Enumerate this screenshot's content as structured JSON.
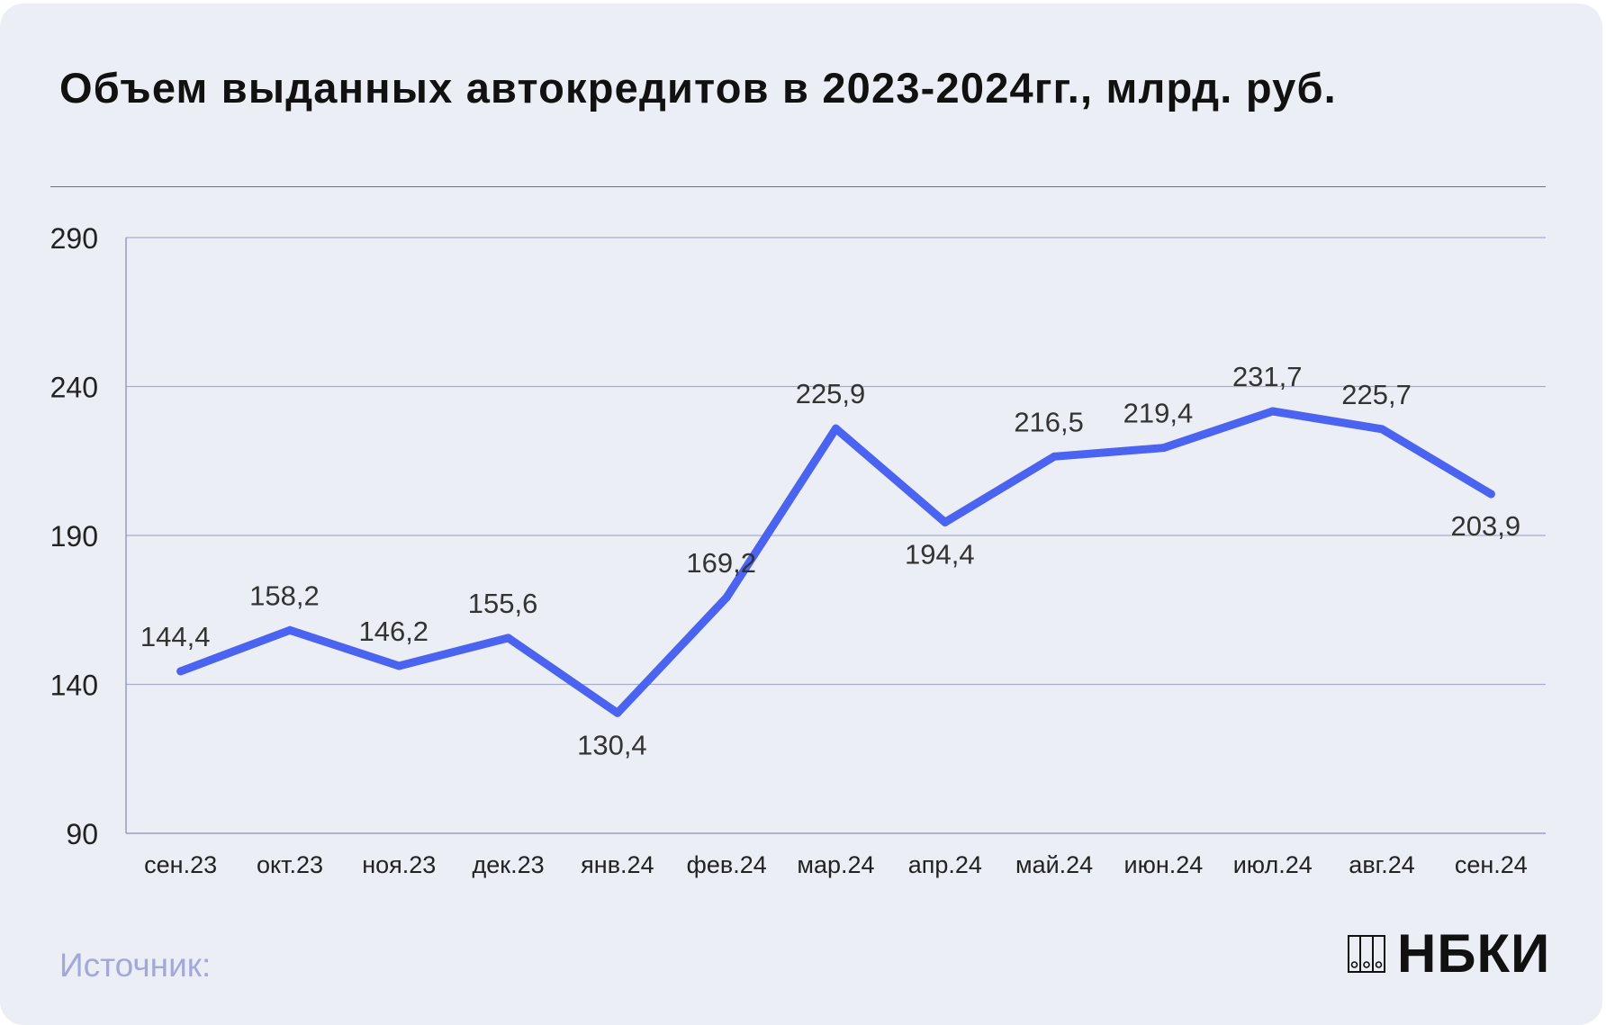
{
  "title": "Объем выданных автокредитов в 2023-2024гг., млрд. руб.",
  "source_label": "Источник:",
  "brand": {
    "name": "НБКИ",
    "icon": "nbki-logo-icon"
  },
  "colors": {
    "line": "#4a63f0",
    "grid": "#a7acd0",
    "axis": "#8a8fb5",
    "text": "#333333",
    "background": "#eceef6"
  },
  "chart_data": {
    "type": "line",
    "title": "Объем выданных автокредитов в 2023-2024гг., млрд. руб.",
    "xlabel": "",
    "ylabel": "",
    "categories": [
      "сен.23",
      "окт.23",
      "ноя.23",
      "дек.23",
      "янв.24",
      "фев.24",
      "мар.24",
      "апр.24",
      "май.24",
      "июн.24",
      "июл.24",
      "авг.24",
      "сен.24"
    ],
    "values": [
      144.4,
      158.2,
      146.2,
      155.6,
      130.4,
      169.2,
      225.9,
      194.4,
      216.5,
      219.4,
      231.7,
      225.7,
      203.9
    ],
    "data_labels": [
      "144,4",
      "158,2",
      "146,2",
      "155,6",
      "130,4",
      "169,2",
      "225,9",
      "194,4",
      "216,5",
      "219,4",
      "231,7",
      "225,7",
      "203,9"
    ],
    "label_positions": [
      "above",
      "above",
      "above",
      "above",
      "below",
      "above",
      "above",
      "below",
      "above",
      "above",
      "above",
      "above",
      "below"
    ],
    "yticks": [
      "290",
      "240",
      "190",
      "140",
      "90"
    ],
    "ylim": [
      90,
      290
    ],
    "grid": true,
    "legend": "none"
  }
}
